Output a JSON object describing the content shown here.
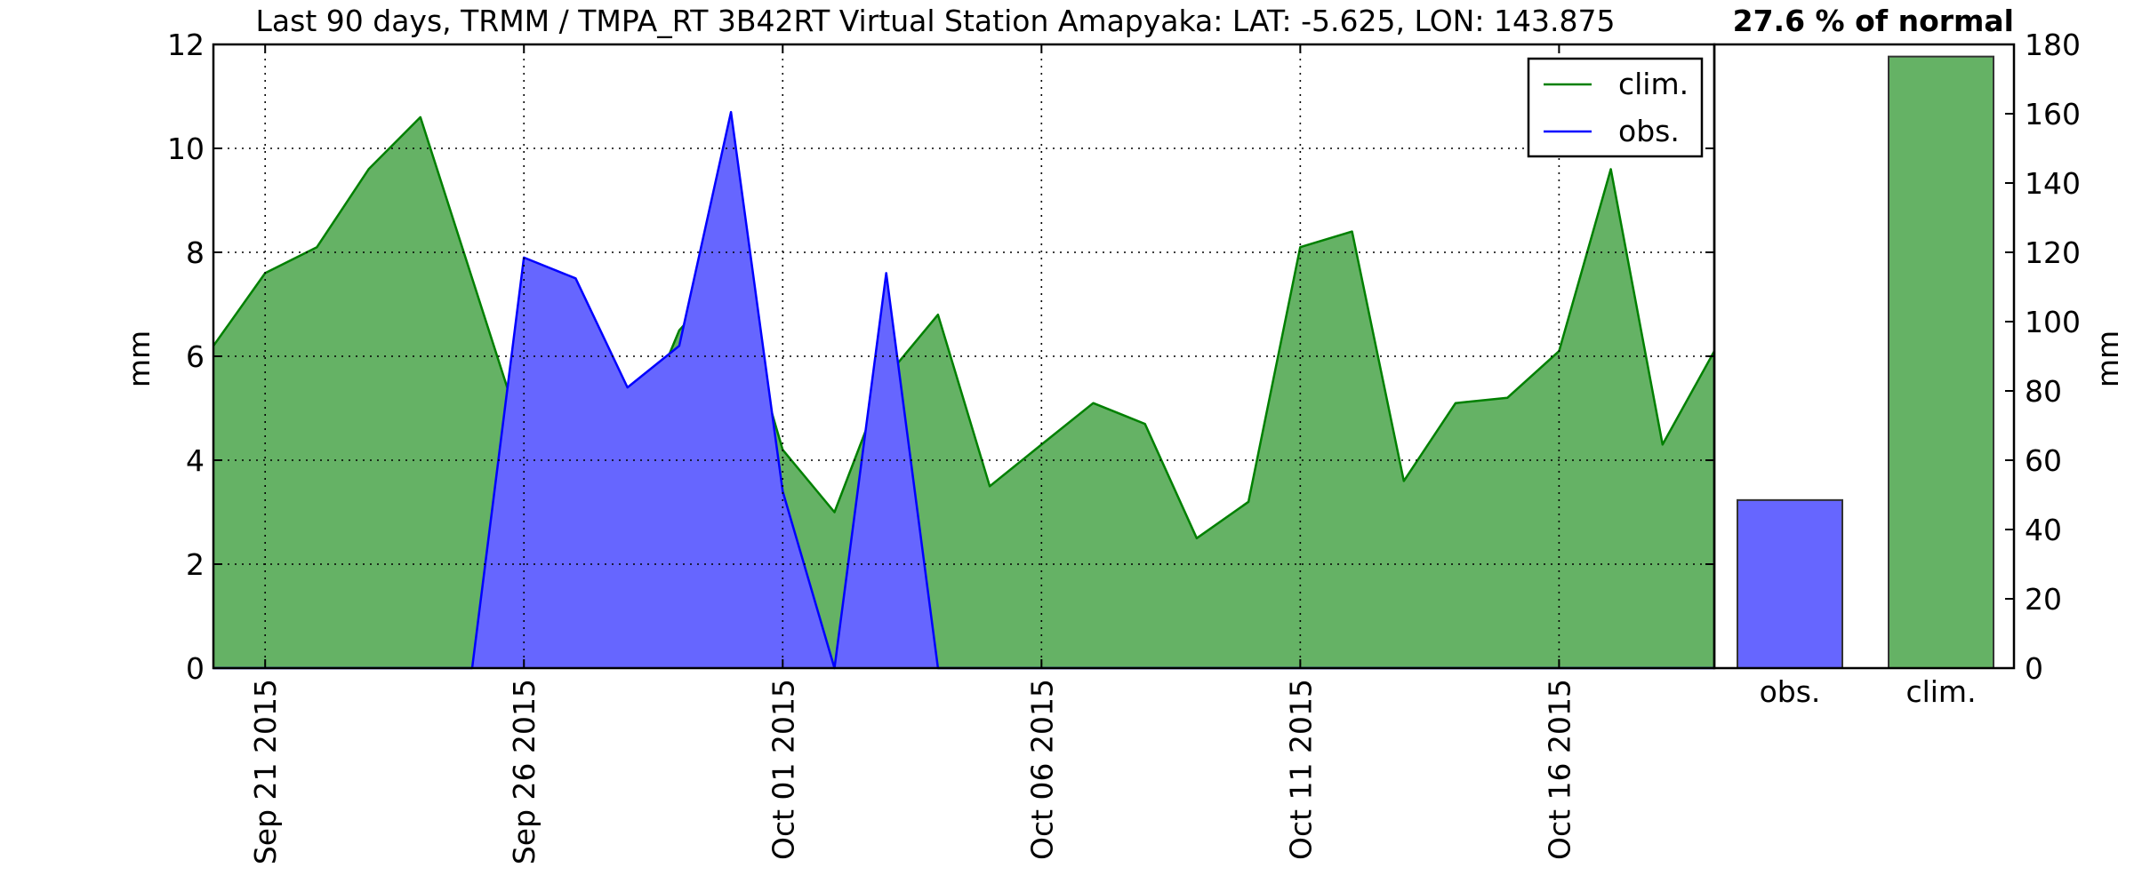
{
  "header": {
    "title": "Last 90 days, TRMM / TMPA_RT 3B42RT Virtual Station Amapyaka: LAT: -5.625, LON: 143.875",
    "percent_label": "27.6 % of normal"
  },
  "chart_data": [
    {
      "type": "area",
      "title": "Last 90 days, TRMM / TMPA_RT 3B42RT Virtual Station Amapyaka: LAT: -5.625, LON: 143.875",
      "ylabel": "mm",
      "xlabel": "",
      "ylim": [
        0,
        12
      ],
      "yticks": [
        0,
        2,
        4,
        6,
        8,
        10,
        12
      ],
      "xlim": [
        "2015-09-20",
        "2015-10-19"
      ],
      "xticks": [
        "2015-09-21",
        "2015-09-26",
        "2015-10-01",
        "2015-10-06",
        "2015-10-11",
        "2015-10-16"
      ],
      "xtick_labels": [
        "Sep 21 2015",
        "Sep 26 2015",
        "Oct 01 2015",
        "Oct 06 2015",
        "Oct 11 2015",
        "Oct 16 2015"
      ],
      "grid": true,
      "legend": {
        "position": "top-right",
        "entries": [
          "clim.",
          "obs."
        ]
      },
      "x": [
        "2015-09-20",
        "2015-09-21",
        "2015-09-22",
        "2015-09-23",
        "2015-09-24",
        "2015-09-25",
        "2015-09-26",
        "2015-09-27",
        "2015-09-28",
        "2015-09-29",
        "2015-09-30",
        "2015-10-01",
        "2015-10-02",
        "2015-10-03",
        "2015-10-04",
        "2015-10-05",
        "2015-10-06",
        "2015-10-07",
        "2015-10-08",
        "2015-10-09",
        "2015-10-10",
        "2015-10-11",
        "2015-10-12",
        "2015-10-13",
        "2015-10-14",
        "2015-10-15",
        "2015-10-16",
        "2015-10-17",
        "2015-10-18",
        "2015-10-19"
      ],
      "series": [
        {
          "name": "clim.",
          "color": "#008000",
          "fill": "#65b265",
          "values": [
            6.2,
            7.6,
            8.1,
            9.6,
            10.6,
            7.5,
            4.4,
            5.1,
            4.1,
            6.5,
            7.6,
            4.2,
            3.0,
            5.6,
            6.8,
            3.5,
            4.3,
            5.1,
            4.7,
            2.5,
            3.2,
            8.1,
            8.4,
            3.6,
            5.1,
            5.2,
            6.1,
            9.6,
            4.3,
            6.1
          ]
        },
        {
          "name": "obs.",
          "color": "#0000ff",
          "fill": "#6666ff",
          "values": [
            0,
            0,
            0,
            0,
            0,
            0,
            7.9,
            7.5,
            5.4,
            6.2,
            10.7,
            3.4,
            0,
            7.6,
            0,
            0,
            0,
            0,
            0,
            0,
            0,
            0,
            0,
            0,
            0,
            0,
            0,
            0,
            0,
            0
          ]
        }
      ]
    },
    {
      "type": "bar",
      "categories": [
        "obs.",
        "clim."
      ],
      "values": [
        48.5,
        176.5
      ],
      "colors": [
        "#6666ff",
        "#65b265"
      ],
      "ylabel": "mm",
      "ylim": [
        0,
        180
      ],
      "yticks": [
        0,
        20,
        40,
        60,
        80,
        100,
        120,
        140,
        160,
        180
      ]
    }
  ]
}
